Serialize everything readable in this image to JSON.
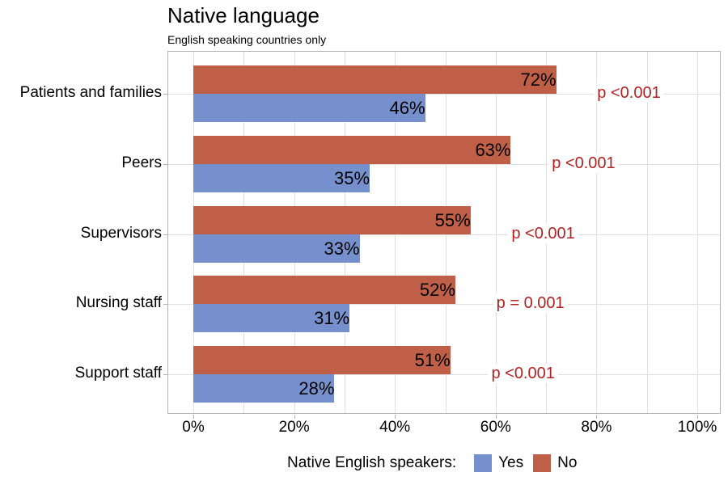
{
  "chart_data": {
    "type": "bar",
    "orientation": "horizontal",
    "title": "Native language",
    "subtitle": "English speaking countries only",
    "xlabel": "",
    "ylabel": "",
    "xlim": [
      0,
      100
    ],
    "x_ticks": [
      "0%",
      "20%",
      "40%",
      "60%",
      "80%",
      "100%"
    ],
    "grid": true,
    "legend_position": "bottom",
    "legend_title": "Native English speakers:",
    "categories": [
      "Patients and families",
      "Peers",
      "Supervisors",
      "Nursing staff",
      "Support staff"
    ],
    "series": [
      {
        "name": "Yes",
        "color": "#7590cc",
        "values": [
          46,
          35,
          33,
          31,
          28
        ],
        "labels": [
          "46%",
          "35%",
          "33%",
          "31%",
          "28%"
        ]
      },
      {
        "name": "No",
        "color": "#c05f47",
        "values": [
          72,
          63,
          55,
          52,
          51
        ],
        "labels": [
          "72%",
          "63%",
          "55%",
          "52%",
          "51%"
        ]
      }
    ],
    "annotations": [
      "p <0.001",
      "p <0.001",
      "p <0.001",
      "p = 0.001",
      "p <0.001"
    ],
    "annotation_color": "#b22222"
  }
}
